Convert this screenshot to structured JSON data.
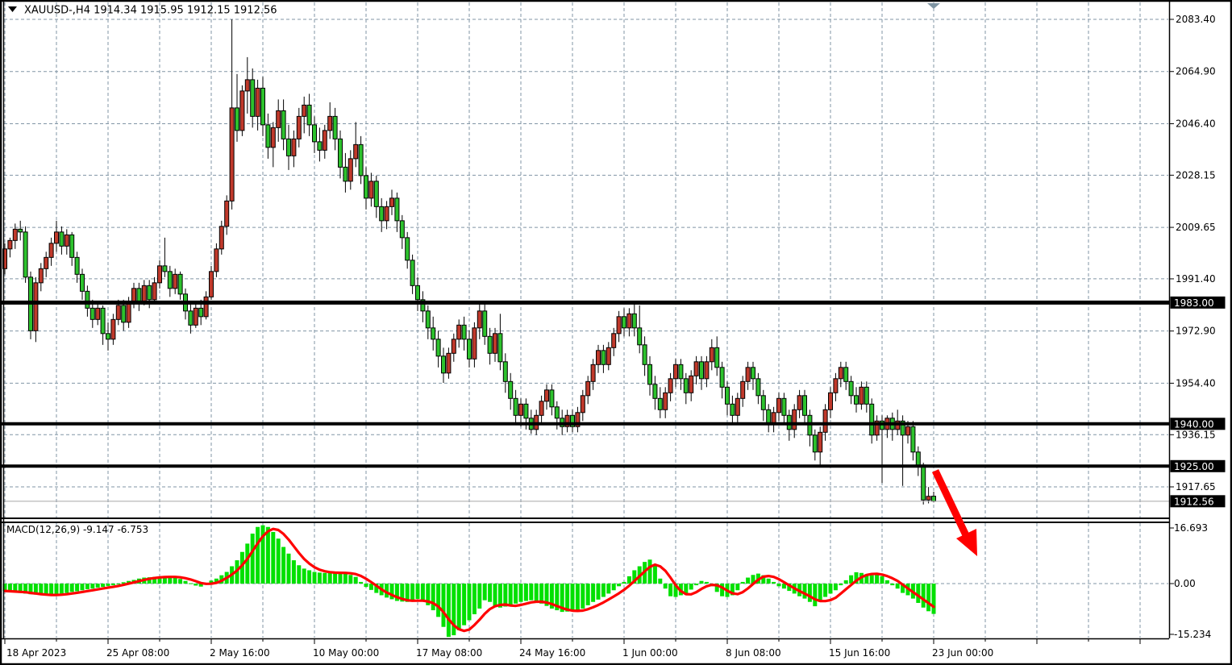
{
  "window": {
    "title_text": "XAUUSD-,H4  1914.34 1915.95 1912.15 1912.56",
    "symbol": "XAUUSD-",
    "timeframe": "H4"
  },
  "colors": {
    "bull_candle": "#c0392b",
    "bear_candle": "#2dc22d",
    "wick": "#000000",
    "grid": "#8195a5",
    "macd_histogram": "#00e000",
    "macd_signal": "#ff0000",
    "level_line": "#000000",
    "current_price_line": "#a8a8a8",
    "tag_background": "#000000",
    "tag_text": "#ffffff",
    "arrow": "#ff0000",
    "scroll_marker": "#7f95a3"
  },
  "chart_data": {
    "type": "candlestick",
    "title": "XAUUSD-,H4",
    "current_bar": {
      "open": "1914.34",
      "high": "1915.95",
      "low": "1912.15",
      "close": "1912.56"
    },
    "price_axis": {
      "gridline_labels": [
        "2083.40",
        "2064.90",
        "2046.40",
        "2028.15",
        "2009.65",
        "1991.40",
        "1972.90",
        "1954.40",
        "1936.15",
        "1917.65"
      ],
      "gridline_prices": [
        2083.4,
        2064.9,
        2046.4,
        2028.15,
        2009.65,
        1991.4,
        1972.9,
        1954.4,
        1936.15,
        1917.65
      ],
      "ylim": [
        1906.5,
        2089.7
      ],
      "tags": [
        {
          "label": "1983.00",
          "price": 1983.0,
          "kind": "level"
        },
        {
          "label": "1940.00",
          "price": 1940.0,
          "kind": "level"
        },
        {
          "label": "1925.00",
          "price": 1925.0,
          "kind": "level"
        },
        {
          "label": "1912.56",
          "price": 1912.56,
          "kind": "current-price"
        }
      ]
    },
    "horizontal_levels": [
      {
        "price": 1983.0,
        "thickness": 5
      },
      {
        "price": 1940.0,
        "thickness": 4
      },
      {
        "price": 1925.0,
        "thickness": 4
      }
    ],
    "current_price": 1912.56,
    "time_axis": {
      "labels": [
        "18 Apr 2023",
        "25 Apr 08:00",
        "2 May 16:00",
        "10 May 00:00",
        "17 May 08:00",
        "24 May 16:00",
        "1 Jun 00:00",
        "8 Jun 08:00",
        "15 Jun 16:00",
        "23 Jun 00:00"
      ]
    },
    "bars": [
      [
        1995,
        2004,
        1993,
        2002
      ],
      [
        2002,
        2006,
        1999,
        2005
      ],
      [
        2005,
        2011,
        2002,
        2009
      ],
      [
        2009,
        2012,
        2005,
        2008
      ],
      [
        2008,
        2010,
        1990,
        1992
      ],
      [
        1992,
        1994,
        1970,
        1973
      ],
      [
        1973,
        1992,
        1969,
        1990
      ],
      [
        1990,
        1997,
        1987,
        1995
      ],
      [
        1995,
        2001,
        1992,
        1999
      ],
      [
        1999,
        2006,
        1996,
        2004
      ],
      [
        2004,
        2012,
        2001,
        2008
      ],
      [
        2008,
        2010,
        2000,
        2003
      ],
      [
        2003,
        2009,
        2000,
        2007
      ],
      [
        2007,
        2008,
        1996,
        1999
      ],
      [
        1999,
        2001,
        1990,
        1993
      ],
      [
        1993,
        1995,
        1984,
        1987
      ],
      [
        1987,
        1989,
        1978,
        1981
      ],
      [
        1981,
        1984,
        1974,
        1977
      ],
      [
        1977,
        1983,
        1975,
        1981
      ],
      [
        1981,
        1982,
        1968,
        1972
      ],
      [
        1972,
        1976,
        1966,
        1970
      ],
      [
        1970,
        1979,
        1968,
        1977
      ],
      [
        1977,
        1984,
        1975,
        1982
      ],
      [
        1982,
        1984,
        1973,
        1976
      ],
      [
        1976,
        1985,
        1974,
        1983
      ],
      [
        1983,
        1990,
        1981,
        1988
      ],
      [
        1988,
        1990,
        1980,
        1983
      ],
      [
        1983,
        1991,
        1982,
        1989
      ],
      [
        1989,
        1991,
        1981,
        1984
      ],
      [
        1984,
        1992,
        1983,
        1990
      ],
      [
        1990,
        1998,
        1988,
        1996
      ],
      [
        1996,
        2006,
        1992,
        1994
      ],
      [
        1994,
        1996,
        1985,
        1988
      ],
      [
        1988,
        1995,
        1986,
        1993
      ],
      [
        1993,
        1994,
        1984,
        1986
      ],
      [
        1986,
        1988,
        1977,
        1980
      ],
      [
        1980,
        1983,
        1972,
        1975
      ],
      [
        1975,
        1983,
        1974,
        1981
      ],
      [
        1981,
        1984,
        1975,
        1978
      ],
      [
        1978,
        1987,
        1977,
        1985
      ],
      [
        1985,
        1996,
        1984,
        1994
      ],
      [
        1994,
        2004,
        1992,
        2002
      ],
      [
        2002,
        2012,
        2000,
        2010
      ],
      [
        2010,
        2021,
        2007,
        2019
      ],
      [
        2019,
        2083.4,
        2016,
        2052
      ],
      [
        2052,
        2064,
        2040,
        2044
      ],
      [
        2044,
        2060,
        2042,
        2058
      ],
      [
        2058,
        2070,
        2050,
        2062
      ],
      [
        2062,
        2066,
        2045,
        2049
      ],
      [
        2049,
        2062,
        2044,
        2059
      ],
      [
        2059,
        2063,
        2042,
        2046
      ],
      [
        2046,
        2050,
        2034,
        2038
      ],
      [
        2038,
        2047,
        2031,
        2045
      ],
      [
        2045,
        2055,
        2040,
        2051
      ],
      [
        2051,
        2055,
        2037,
        2041
      ],
      [
        2041,
        2046,
        2030,
        2035
      ],
      [
        2035,
        2044,
        2031,
        2041
      ],
      [
        2041,
        2052,
        2038,
        2049
      ],
      [
        2049,
        2056,
        2043,
        2053
      ],
      [
        2053,
        2057,
        2042,
        2046
      ],
      [
        2046,
        2049,
        2036,
        2040
      ],
      [
        2040,
        2045,
        2033,
        2037
      ],
      [
        2037,
        2046,
        2034,
        2044
      ],
      [
        2044,
        2054,
        2041,
        2049
      ],
      [
        2049,
        2052,
        2037,
        2041
      ],
      [
        2041,
        2044,
        2027,
        2031
      ],
      [
        2031,
        2036,
        2022,
        2026
      ],
      [
        2026,
        2037,
        2023,
        2034
      ],
      [
        2034,
        2047,
        2031,
        2039
      ],
      [
        2039,
        2042,
        2025,
        2028
      ],
      [
        2028,
        2031,
        2016,
        2020
      ],
      [
        2020,
        2029,
        2017,
        2026
      ],
      [
        2026,
        2028,
        2013,
        2017
      ],
      [
        2017,
        2020,
        2008,
        2012
      ],
      [
        2012,
        2019,
        2009,
        2017
      ],
      [
        2017,
        2023,
        2014,
        2020
      ],
      [
        2020,
        2022,
        2008,
        2012
      ],
      [
        2012,
        2014,
        2002,
        2006
      ],
      [
        2006,
        2008,
        1995,
        1998
      ],
      [
        1998,
        2000,
        1986,
        1989
      ],
      [
        1989,
        1992,
        1980,
        1984
      ],
      [
        1984,
        1987,
        1976,
        1980
      ],
      [
        1980,
        1982,
        1970,
        1974
      ],
      [
        1974,
        1978,
        1966,
        1970
      ],
      [
        1970,
        1973,
        1960,
        1964
      ],
      [
        1964,
        1967,
        1954.5,
        1958
      ],
      [
        1958,
        1967,
        1956,
        1965
      ],
      [
        1965,
        1972,
        1962,
        1970
      ],
      [
        1970,
        1977,
        1967,
        1975
      ],
      [
        1975,
        1978,
        1966,
        1970
      ],
      [
        1970,
        1973,
        1960,
        1963
      ],
      [
        1963,
        1976,
        1960,
        1974
      ],
      [
        1974,
        1983,
        1970,
        1980
      ],
      [
        1980,
        1983,
        1968,
        1971
      ],
      [
        1971,
        1974,
        1961,
        1965
      ],
      [
        1965,
        1974,
        1962,
        1972
      ],
      [
        1972,
        1979,
        1959,
        1962
      ],
      [
        1962,
        1965,
        1951,
        1955
      ],
      [
        1955,
        1958,
        1945,
        1949
      ],
      [
        1949,
        1952,
        1940,
        1943
      ],
      [
        1943,
        1949,
        1939,
        1947
      ],
      [
        1947,
        1949,
        1938,
        1942
      ],
      [
        1942,
        1945,
        1936.5,
        1938
      ],
      [
        1938,
        1945,
        1936,
        1943
      ],
      [
        1943,
        1950,
        1940,
        1948
      ],
      [
        1948,
        1954,
        1945,
        1952
      ],
      [
        1952,
        1954,
        1943,
        1946
      ],
      [
        1946,
        1948,
        1938,
        1942
      ],
      [
        1942,
        1945,
        1936,
        1939
      ],
      [
        1939,
        1945,
        1937,
        1943
      ],
      [
        1943,
        1945,
        1937,
        1939
      ],
      [
        1939,
        1946,
        1937,
        1944
      ],
      [
        1944,
        1952,
        1941,
        1950
      ],
      [
        1950,
        1957,
        1947,
        1955
      ],
      [
        1955,
        1963,
        1952,
        1961
      ],
      [
        1961,
        1968,
        1958,
        1966
      ],
      [
        1966,
        1968,
        1958,
        1961
      ],
      [
        1961,
        1969,
        1959,
        1967
      ],
      [
        1967,
        1974,
        1964,
        1972
      ],
      [
        1972,
        1980,
        1969,
        1978
      ],
      [
        1978,
        1981,
        1971,
        1974
      ],
      [
        1974,
        1981,
        1971,
        1979
      ],
      [
        1979,
        1983.5,
        1971,
        1974
      ],
      [
        1974,
        1982,
        1965,
        1968
      ],
      [
        1968,
        1971,
        1957,
        1961
      ],
      [
        1961,
        1964,
        1950,
        1954
      ],
      [
        1954,
        1957,
        1945,
        1949
      ],
      [
        1949,
        1953,
        1942,
        1945
      ],
      [
        1945,
        1953,
        1942,
        1951
      ],
      [
        1951,
        1958,
        1948,
        1956
      ],
      [
        1956,
        1963,
        1953,
        1961
      ],
      [
        1961,
        1963,
        1952,
        1956
      ],
      [
        1956,
        1958,
        1947,
        1951
      ],
      [
        1951,
        1959,
        1948,
        1957
      ],
      [
        1957,
        1964,
        1954,
        1962
      ],
      [
        1962,
        1964,
        1952,
        1956
      ],
      [
        1956,
        1964,
        1953,
        1962
      ],
      [
        1962,
        1970,
        1959,
        1967
      ],
      [
        1967,
        1971,
        1957,
        1960
      ],
      [
        1960,
        1962,
        1949,
        1953
      ],
      [
        1953,
        1955,
        1943,
        1947
      ],
      [
        1947,
        1950,
        1940,
        1943
      ],
      [
        1943,
        1951,
        1940,
        1949
      ],
      [
        1949,
        1957,
        1946,
        1955
      ],
      [
        1955,
        1962,
        1952,
        1960
      ],
      [
        1960,
        1962,
        1952,
        1956
      ],
      [
        1956,
        1958,
        1947,
        1950
      ],
      [
        1950,
        1952,
        1941,
        1945
      ],
      [
        1945,
        1947,
        1937,
        1940
      ],
      [
        1940,
        1946,
        1937,
        1944
      ],
      [
        1944,
        1951,
        1941,
        1949
      ],
      [
        1949,
        1951,
        1940,
        1943
      ],
      [
        1943,
        1945,
        1934,
        1938
      ],
      [
        1938,
        1947,
        1935,
        1945
      ],
      [
        1945,
        1952,
        1942,
        1950
      ],
      [
        1950,
        1952,
        1940,
        1943
      ],
      [
        1943,
        1945,
        1932,
        1936
      ],
      [
        1936,
        1938,
        1927,
        1930
      ],
      [
        1930,
        1939,
        1924.5,
        1937
      ],
      [
        1937,
        1947,
        1934,
        1945
      ],
      [
        1945,
        1953,
        1942,
        1951
      ],
      [
        1951,
        1958,
        1948,
        1956
      ],
      [
        1956,
        1962,
        1953,
        1960
      ],
      [
        1960,
        1962,
        1952,
        1955
      ],
      [
        1955,
        1957,
        1947,
        1950
      ],
      [
        1950,
        1953,
        1944,
        1947
      ],
      [
        1947,
        1955,
        1945,
        1953
      ],
      [
        1953,
        1955,
        1944,
        1947
      ],
      [
        1947,
        1949,
        1933,
        1936
      ],
      [
        1936,
        1943,
        1934,
        1941
      ],
      [
        1941,
        1943,
        1919,
        1938
      ],
      [
        1938,
        1943,
        1935,
        1942
      ],
      [
        1942,
        1944,
        1934,
        1938
      ],
      [
        1938,
        1945,
        1936,
        1941
      ],
      [
        1941,
        1943,
        1918,
        1936
      ],
      [
        1936,
        1941,
        1933,
        1939
      ],
      [
        1939,
        1941,
        1927,
        1930
      ],
      [
        1930,
        1932,
        1921.5,
        1925
      ],
      [
        1925.4,
        1926.2,
        1911.4,
        1913
      ],
      [
        1913,
        1917.6,
        1911.8,
        1914.3
      ],
      [
        1914.34,
        1915.95,
        1912.15,
        1912.56
      ]
    ],
    "macd": {
      "label": "MACD(12,26,9) -9.147 -6.753",
      "parameters": "12,26,9",
      "macd_value": -9.147,
      "signal_value": -6.753,
      "axis_labels": [
        "16.693",
        "0.00",
        "-15.234"
      ],
      "axis_values": [
        16.693,
        0.0,
        -15.234
      ],
      "ylim": [
        -16.45,
        18.39
      ],
      "signal_smoothing": 5,
      "values": [
        -2.2,
        -2.4,
        -2.6,
        -2.8,
        -3.0,
        -3.2,
        -3.3,
        -3.5,
        -3.6,
        -3.4,
        -3.2,
        -3.0,
        -2.8,
        -2.5,
        -2.3,
        -2.0,
        -1.7,
        -1.5,
        -1.2,
        -1.0,
        -0.7,
        -0.5,
        -0.1,
        0.4,
        0.8,
        1.1,
        1.5,
        1.8,
        1.9,
        2.0,
        2.1,
        2.0,
        2.0,
        1.9,
        1.4,
        0.8,
        0.1,
        -0.6,
        -0.9,
        0.2,
        0.9,
        1.5,
        2.5,
        3.5,
        5.2,
        7.0,
        9.5,
        12.0,
        15.0,
        17.0,
        17.5,
        17.0,
        15.5,
        13.5,
        11.0,
        9.0,
        7.0,
        5.5,
        4.5,
        4.0,
        3.5,
        3.3,
        3.2,
        3.2,
        3.3,
        3.2,
        3.2,
        2.6,
        2.0,
        0.5,
        -1.0,
        -1.9,
        -2.8,
        -3.5,
        -4.2,
        -4.7,
        -5.2,
        -5.4,
        -5.5,
        -5.0,
        -4.6,
        -5.2,
        -6.5,
        -8.0,
        -10.0,
        -13.0,
        -16.0,
        -15.5,
        -14.0,
        -12.5,
        -11.0,
        -9.2,
        -7.5,
        -5.0,
        -5.5,
        -6.8,
        -7.2,
        -6.9,
        -6.5,
        -6.0,
        -5.5,
        -5.2,
        -5.0,
        -5.5,
        -6.0,
        -6.7,
        -7.5,
        -8.0,
        -8.5,
        -8.4,
        -8.2,
        -7.9,
        -7.5,
        -6.5,
        -5.5,
        -4.8,
        -4.0,
        -3.0,
        -2.0,
        -0.8,
        0.5,
        2.2,
        4.0,
        5.2,
        6.5,
        7.2,
        5.5,
        1.5,
        -1.5,
        -3.8,
        -4.0,
        -3.5,
        -3.0,
        -1.8,
        -0.5,
        0.8,
        0.5,
        -0.8,
        -2.5,
        -3.8,
        -4.0,
        -3.5,
        -2.0,
        0.5,
        1.8,
        2.6,
        3.0,
        2.5,
        1.5,
        0.5,
        -0.8,
        -1.5,
        -2.2,
        -3.0,
        -3.8,
        -4.5,
        -5.5,
        -6.8,
        -5.5,
        -4.0,
        -3.0,
        -2.0,
        -0.5,
        1.0,
        2.5,
        3.4,
        3.2,
        2.8,
        2.5,
        2.8,
        2.2,
        1.0,
        -0.5,
        -1.5,
        -2.8,
        -3.5,
        -4.5,
        -5.8,
        -7.2,
        -8.3,
        -9.1
      ]
    },
    "annotations": [
      {
        "name": "down-arrow",
        "description": "thick red arrow pointing down-right from the 1925.00 level"
      }
    ]
  }
}
